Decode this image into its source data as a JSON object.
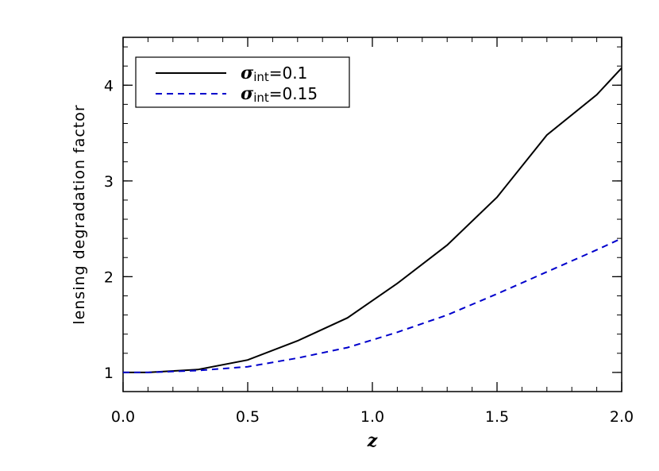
{
  "chart_data": {
    "type": "line",
    "xlabel": "z",
    "ylabel": "lensing degradation factor",
    "xlim": [
      0.0,
      2.0
    ],
    "ylim": [
      0.8,
      4.5
    ],
    "xticks": [
      "0.0",
      "0.5",
      "1.0",
      "1.5",
      "2.0"
    ],
    "xtick_values": [
      0.0,
      0.5,
      1.0,
      1.5,
      2.0
    ],
    "yticks": [
      "1",
      "2",
      "3",
      "4"
    ],
    "ytick_values": [
      1,
      2,
      3,
      4
    ],
    "legend_position": "top-left",
    "grid": false,
    "series": [
      {
        "name": "σ_int=0.1",
        "legend_symbol": "σ",
        "legend_sub": "int",
        "legend_value": "=0.1",
        "color": "#000000",
        "dash": "solid",
        "x": [
          0.0,
          0.1,
          0.3,
          0.5,
          0.7,
          0.9,
          1.1,
          1.3,
          1.5,
          1.7,
          1.9,
          2.0
        ],
        "y": [
          1.0,
          1.0,
          1.03,
          1.13,
          1.33,
          1.57,
          1.93,
          2.33,
          2.83,
          3.48,
          3.9,
          4.18
        ]
      },
      {
        "name": "σ_int=0.15",
        "legend_symbol": "σ",
        "legend_sub": "int",
        "legend_value": "=0.15",
        "color": "#0000cc",
        "dash": "dashed",
        "x": [
          0.0,
          0.1,
          0.3,
          0.5,
          0.7,
          0.9,
          1.1,
          1.3,
          1.5,
          1.7,
          1.9,
          2.0
        ],
        "y": [
          1.0,
          1.0,
          1.02,
          1.06,
          1.15,
          1.26,
          1.42,
          1.6,
          1.82,
          2.05,
          2.28,
          2.4
        ]
      }
    ]
  }
}
